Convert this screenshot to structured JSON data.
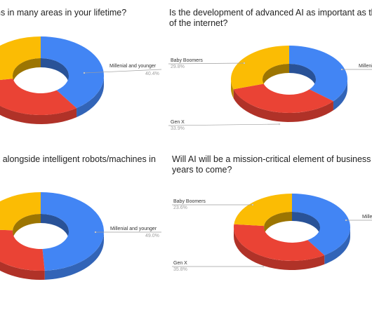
{
  "colors": {
    "millenial": "#4285f4",
    "genx": "#ea4335",
    "boomers": "#fbbc04",
    "leader": "#9e9e9e"
  },
  "titles": {
    "t1": [
      "ns in many areas in your lifetime?"
    ],
    "t2": [
      "Is the development of advanced AI as important as the",
      "of the internet?"
    ],
    "t3": [
      "k alongside intelligent robots/machines in"
    ],
    "t4": [
      "Will AI will be a mission-critical element of business st",
      "years to come?"
    ]
  },
  "chart_data": [
    {
      "type": "pie",
      "style": "3d-donut",
      "title": "ns in many areas in your lifetime?",
      "slices": [
        {
          "label": "Millenial and younger",
          "value": 40.4,
          "value_label": "40.4%"
        },
        {
          "label": "Gen X",
          "value": 32.0,
          "value_label": ""
        },
        {
          "label": "Baby Boomers",
          "value": 27.6,
          "value_label": ""
        }
      ]
    },
    {
      "type": "pie",
      "style": "3d-donut",
      "title": "Is the development of advanced AI as important as the of the internet?",
      "slices": [
        {
          "label": "Millenial and younger",
          "value": 36.3,
          "value_label": ""
        },
        {
          "label": "Gen X",
          "value": 33.9,
          "value_label": "33.9%"
        },
        {
          "label": "Baby Boomers",
          "value": 29.8,
          "value_label": "29.8%"
        }
      ]
    },
    {
      "type": "pie",
      "style": "3d-donut",
      "title": "k alongside intelligent robots/machines in",
      "slices": [
        {
          "label": "Millenial and younger",
          "value": 49.0,
          "value_label": "49.0%"
        },
        {
          "label": "Gen X",
          "value": 27.0,
          "value_label": ""
        },
        {
          "label": "Baby Boomers",
          "value": 24.0,
          "value_label": ""
        }
      ]
    },
    {
      "type": "pie",
      "style": "3d-donut",
      "title": "Will AI will be a mission-critical element of business st years to come?",
      "slices": [
        {
          "label": "Millenial and younger",
          "value": 40.6,
          "value_label": ""
        },
        {
          "label": "Gen X",
          "value": 35.8,
          "value_label": "35.8%"
        },
        {
          "label": "Baby Boomers",
          "value": 23.6,
          "value_label": "23.6%"
        }
      ]
    }
  ],
  "callouts": [
    [
      {
        "slice": 0,
        "name": "Millenial and younger",
        "pct": "40.4%"
      }
    ],
    [
      {
        "slice": 0,
        "name": "Millenial and younger",
        "pct": ""
      },
      {
        "slice": 1,
        "name": "Gen X",
        "pct": "33.9%"
      },
      {
        "slice": 2,
        "name": "Baby Boomers",
        "pct": "29.8%"
      }
    ],
    [
      {
        "slice": 0,
        "name": "Millenial and younger",
        "pct": "49.0%"
      }
    ],
    [
      {
        "slice": 0,
        "name": "Millenial and younger",
        "pct": ""
      },
      {
        "slice": 1,
        "name": "Gen X",
        "pct": "35.8%"
      },
      {
        "slice": 2,
        "name": "Baby Boomers",
        "pct": "23.6%"
      }
    ]
  ]
}
